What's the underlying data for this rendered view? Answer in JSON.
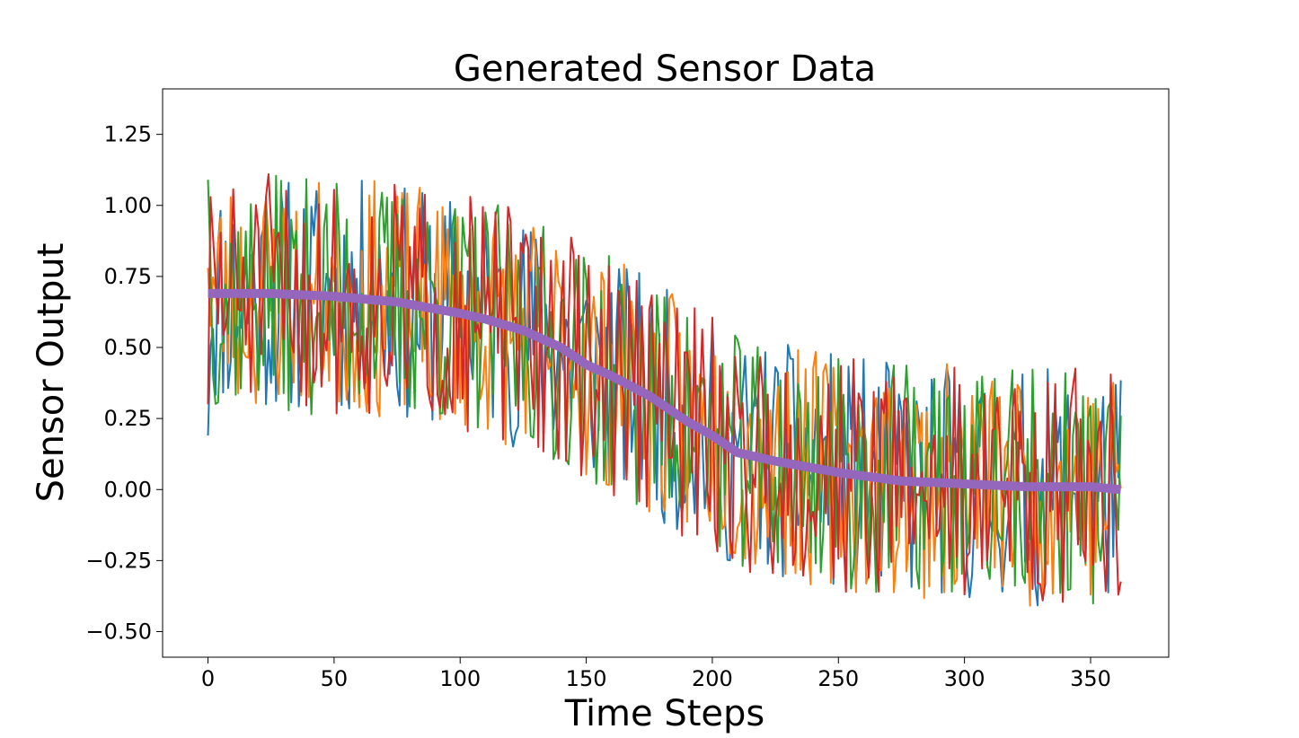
{
  "chart_data": {
    "type": "line",
    "title": "Generated Sensor Data",
    "xlabel": "Time Steps",
    "ylabel": "Sensor Output",
    "xlim": [
      -18,
      381
    ],
    "ylim": [
      -0.59,
      1.41
    ],
    "x_ticks": [
      0,
      50,
      100,
      150,
      200,
      250,
      300,
      350
    ],
    "x_tick_labels": [
      "0",
      "50",
      "100",
      "150",
      "200",
      "250",
      "300",
      "350"
    ],
    "y_ticks": [
      -0.5,
      -0.25,
      0.0,
      0.25,
      0.5,
      0.75,
      1.0,
      1.25
    ],
    "y_tick_labels": [
      "−0.50",
      "−0.25",
      "0.00",
      "0.25",
      "0.50",
      "0.75",
      "1.00",
      "1.25"
    ],
    "grid": false,
    "legend": "none",
    "n_points": 363,
    "noisy_series": [
      {
        "color": "#1f77b4",
        "seed": 11,
        "start_value": 0.19
      },
      {
        "color": "#ff7f0e",
        "seed": 23,
        "start_value": 0.78
      },
      {
        "color": "#2ca02c",
        "seed": 37,
        "start_value": 1.09
      },
      {
        "color": "#d62728",
        "seed": 51,
        "start_value": 0.3
      }
    ],
    "noise_amplitude": 0.42,
    "trend_series": {
      "color": "#9467bd",
      "x": [
        0,
        25,
        50,
        75,
        100,
        110,
        125,
        140,
        150,
        160,
        175,
        190,
        200,
        210,
        225,
        250,
        275,
        300,
        325,
        350,
        362
      ],
      "values": [
        0.69,
        0.69,
        0.68,
        0.66,
        0.62,
        0.6,
        0.56,
        0.5,
        0.44,
        0.4,
        0.33,
        0.24,
        0.19,
        0.13,
        0.1,
        0.06,
        0.03,
        0.02,
        0.01,
        0.01,
        0.0
      ]
    }
  }
}
